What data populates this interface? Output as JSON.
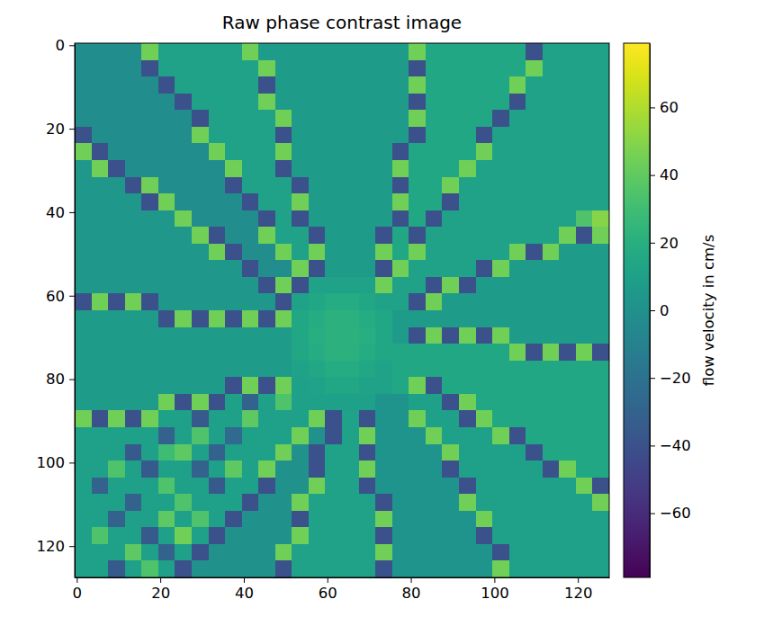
{
  "chart_data": {
    "type": "heatmap",
    "title": "Raw phase contrast image",
    "color": "viridis",
    "xlim": [
      -0.5,
      127.5
    ],
    "ylim": [
      127.5,
      -0.5
    ],
    "xticks": [
      0,
      20,
      40,
      60,
      80,
      100,
      120
    ],
    "yticks": [
      0,
      20,
      40,
      60,
      80,
      100,
      120
    ],
    "x": [
      1.5,
      5.5,
      9.5,
      13.5,
      17.5,
      21.5,
      25.5,
      29.5,
      33.5,
      37.5,
      41.5,
      45.5,
      49.5,
      53.5,
      57.5,
      61.5,
      65.5,
      69.5,
      73.5,
      77.5,
      81.5,
      85.5,
      89.5,
      93.5,
      97.5,
      101.5,
      105.5,
      109.5,
      113.5,
      117.5,
      121.5,
      125.5
    ],
    "y": [
      1.5,
      5.5,
      9.5,
      13.5,
      17.5,
      21.5,
      25.5,
      29.5,
      33.5,
      37.5,
      41.5,
      45.5,
      49.5,
      53.5,
      57.5,
      61.5,
      65.5,
      69.5,
      73.5,
      77.5,
      81.5,
      85.5,
      89.5,
      93.5,
      97.5,
      101.5,
      105.5,
      109.5,
      113.5,
      117.5,
      121.5,
      125.5
    ],
    "cells": [
      [
        -2,
        -2,
        -2,
        -2,
        45,
        12,
        12,
        12,
        12,
        12,
        45,
        8,
        8,
        8,
        8,
        8,
        8,
        8,
        8,
        8,
        45,
        15,
        15,
        15,
        15,
        15,
        15,
        -40,
        12,
        12,
        12,
        12
      ],
      [
        -2,
        -2,
        -2,
        -2,
        -40,
        12,
        12,
        12,
        12,
        12,
        12,
        45,
        8,
        8,
        8,
        8,
        8,
        8,
        8,
        8,
        -40,
        15,
        15,
        15,
        15,
        15,
        15,
        45,
        12,
        12,
        12,
        12
      ],
      [
        -2,
        -2,
        -2,
        -2,
        -2,
        -40,
        12,
        12,
        12,
        12,
        12,
        -40,
        8,
        8,
        8,
        8,
        8,
        8,
        8,
        8,
        45,
        15,
        15,
        15,
        15,
        15,
        45,
        12,
        12,
        12,
        12,
        12
      ],
      [
        -2,
        -2,
        -2,
        -2,
        -2,
        -2,
        -40,
        12,
        12,
        12,
        12,
        45,
        8,
        8,
        8,
        8,
        8,
        8,
        8,
        8,
        -40,
        15,
        15,
        15,
        15,
        15,
        -40,
        12,
        12,
        12,
        12,
        12
      ],
      [
        -2,
        -2,
        -2,
        -2,
        -2,
        -2,
        -2,
        -40,
        12,
        12,
        12,
        12,
        45,
        8,
        8,
        8,
        8,
        8,
        8,
        8,
        45,
        15,
        15,
        15,
        15,
        -40,
        12,
        12,
        12,
        12,
        12,
        12
      ],
      [
        -40,
        -2,
        -2,
        -2,
        -2,
        -2,
        -2,
        45,
        12,
        12,
        12,
        12,
        -40,
        8,
        8,
        8,
        8,
        8,
        8,
        8,
        -40,
        15,
        15,
        15,
        -40,
        12,
        12,
        12,
        12,
        12,
        12,
        12
      ],
      [
        45,
        -40,
        -2,
        -2,
        -2,
        -2,
        -2,
        -2,
        45,
        12,
        12,
        12,
        45,
        8,
        8,
        8,
        8,
        8,
        8,
        -40,
        15,
        15,
        15,
        15,
        45,
        12,
        12,
        12,
        12,
        12,
        12,
        12
      ],
      [
        5,
        45,
        -40,
        -2,
        -2,
        -2,
        -2,
        -2,
        -2,
        45,
        12,
        12,
        -40,
        8,
        8,
        8,
        8,
        8,
        8,
        45,
        15,
        15,
        15,
        45,
        12,
        12,
        12,
        12,
        12,
        12,
        12,
        12
      ],
      [
        5,
        5,
        5,
        -40,
        45,
        -2,
        -2,
        -2,
        -2,
        -40,
        12,
        12,
        12,
        -40,
        8,
        8,
        8,
        8,
        8,
        -40,
        15,
        15,
        45,
        12,
        12,
        12,
        12,
        12,
        12,
        12,
        12,
        12
      ],
      [
        5,
        5,
        5,
        5,
        -40,
        45,
        -2,
        -2,
        -2,
        -2,
        -40,
        12,
        12,
        45,
        8,
        8,
        8,
        8,
        8,
        45,
        15,
        15,
        -40,
        12,
        12,
        12,
        12,
        12,
        12,
        12,
        12,
        12
      ],
      [
        5,
        5,
        5,
        5,
        5,
        5,
        45,
        -2,
        -2,
        -2,
        -2,
        -40,
        12,
        -40,
        8,
        8,
        8,
        8,
        8,
        -40,
        15,
        -40,
        12,
        12,
        12,
        12,
        12,
        12,
        12,
        12,
        35,
        50
      ],
      [
        5,
        5,
        5,
        5,
        5,
        5,
        5,
        45,
        -40,
        -2,
        -2,
        45,
        12,
        12,
        -40,
        8,
        8,
        8,
        -40,
        15,
        -40,
        12,
        12,
        12,
        12,
        12,
        12,
        12,
        12,
        45,
        -40,
        45
      ],
      [
        5,
        5,
        5,
        5,
        5,
        5,
        5,
        5,
        45,
        -40,
        -2,
        -2,
        45,
        12,
        45,
        8,
        8,
        8,
        45,
        15,
        45,
        12,
        12,
        12,
        12,
        12,
        45,
        -40,
        45,
        8,
        8,
        8
      ],
      [
        5,
        5,
        5,
        5,
        5,
        5,
        5,
        5,
        5,
        5,
        -40,
        -2,
        -2,
        45,
        -40,
        8,
        8,
        8,
        -40,
        45,
        12,
        12,
        12,
        12,
        -40,
        45,
        8,
        8,
        8,
        8,
        8,
        8
      ],
      [
        5,
        5,
        5,
        5,
        5,
        5,
        5,
        5,
        5,
        5,
        5,
        -40,
        45,
        -40,
        12,
        12,
        12,
        12,
        45,
        12,
        12,
        -40,
        45,
        -40,
        8,
        8,
        8,
        8,
        8,
        8,
        8,
        8
      ],
      [
        -40,
        45,
        -40,
        45,
        -40,
        5,
        5,
        5,
        5,
        5,
        5,
        5,
        -40,
        12,
        15,
        18,
        18,
        15,
        12,
        12,
        -40,
        45,
        8,
        8,
        8,
        8,
        8,
        8,
        8,
        8,
        8,
        8
      ],
      [
        8,
        8,
        8,
        8,
        8,
        -40,
        45,
        -40,
        45,
        -40,
        45,
        -40,
        45,
        15,
        18,
        22,
        22,
        18,
        15,
        8,
        8,
        8,
        8,
        8,
        8,
        8,
        8,
        8,
        8,
        8,
        8,
        8
      ],
      [
        8,
        8,
        8,
        8,
        8,
        8,
        8,
        8,
        8,
        8,
        8,
        8,
        8,
        15,
        20,
        22,
        22,
        20,
        15,
        8,
        -40,
        45,
        -40,
        45,
        -40,
        45,
        8,
        8,
        8,
        8,
        8,
        8
      ],
      [
        8,
        8,
        8,
        8,
        8,
        8,
        8,
        8,
        8,
        8,
        8,
        8,
        8,
        15,
        18,
        22,
        22,
        18,
        15,
        15,
        15,
        15,
        15,
        15,
        15,
        15,
        45,
        -40,
        45,
        -40,
        45,
        -40
      ],
      [
        8,
        8,
        8,
        8,
        8,
        8,
        8,
        8,
        8,
        8,
        8,
        8,
        8,
        12,
        15,
        18,
        18,
        15,
        12,
        15,
        15,
        15,
        15,
        15,
        15,
        15,
        15,
        15,
        15,
        15,
        15,
        15
      ],
      [
        8,
        8,
        8,
        8,
        8,
        8,
        8,
        8,
        8,
        -40,
        45,
        -40,
        45,
        10,
        12,
        15,
        15,
        12,
        12,
        15,
        45,
        -40,
        15,
        15,
        15,
        15,
        15,
        15,
        15,
        15,
        15,
        15
      ],
      [
        8,
        8,
        8,
        8,
        8,
        45,
        -40,
        45,
        -40,
        10,
        -30,
        10,
        35,
        10,
        10,
        10,
        10,
        10,
        3,
        3,
        10,
        10,
        -40,
        45,
        15,
        15,
        15,
        15,
        15,
        15,
        15,
        15
      ],
      [
        45,
        -40,
        45,
        -40,
        45,
        10,
        10,
        -35,
        10,
        10,
        40,
        10,
        10,
        10,
        45,
        -40,
        12,
        -40,
        3,
        3,
        45,
        10,
        10,
        -40,
        45,
        15,
        15,
        15,
        15,
        15,
        15,
        15
      ],
      [
        10,
        10,
        10,
        10,
        10,
        -30,
        10,
        35,
        10,
        -25,
        10,
        10,
        10,
        45,
        0,
        -40,
        12,
        45,
        3,
        3,
        3,
        45,
        10,
        10,
        10,
        45,
        -40,
        15,
        15,
        15,
        15,
        15
      ],
      [
        10,
        10,
        10,
        -35,
        10,
        30,
        40,
        10,
        -30,
        10,
        10,
        10,
        45,
        0,
        -40,
        12,
        12,
        -40,
        3,
        3,
        3,
        3,
        45,
        10,
        10,
        10,
        10,
        -40,
        15,
        15,
        15,
        15
      ],
      [
        10,
        10,
        35,
        10,
        -35,
        10,
        10,
        -30,
        10,
        40,
        10,
        45,
        0,
        0,
        -40,
        12,
        12,
        45,
        3,
        3,
        3,
        3,
        -40,
        10,
        10,
        10,
        10,
        10,
        -40,
        45,
        15,
        15
      ],
      [
        10,
        -30,
        10,
        10,
        10,
        35,
        10,
        10,
        -35,
        10,
        10,
        -40,
        0,
        0,
        45,
        12,
        12,
        -40,
        3,
        3,
        3,
        3,
        3,
        -40,
        10,
        10,
        10,
        10,
        10,
        10,
        45,
        -40
      ],
      [
        10,
        10,
        10,
        -30,
        10,
        10,
        35,
        10,
        10,
        10,
        -40,
        0,
        0,
        45,
        12,
        12,
        12,
        12,
        -40,
        3,
        3,
        3,
        3,
        45,
        10,
        10,
        10,
        10,
        10,
        10,
        10,
        45
      ],
      [
        10,
        10,
        -30,
        10,
        10,
        40,
        10,
        35,
        10,
        -40,
        0,
        0,
        0,
        -40,
        12,
        12,
        12,
        12,
        45,
        3,
        3,
        3,
        3,
        3,
        45,
        10,
        10,
        10,
        10,
        10,
        10,
        10
      ],
      [
        10,
        35,
        10,
        10,
        -35,
        10,
        45,
        10,
        -40,
        0,
        0,
        0,
        0,
        45,
        12,
        12,
        12,
        12,
        -40,
        3,
        3,
        3,
        3,
        3,
        -40,
        10,
        10,
        10,
        10,
        10,
        10,
        10
      ],
      [
        10,
        10,
        10,
        40,
        10,
        -30,
        10,
        -40,
        0,
        0,
        0,
        0,
        45,
        12,
        12,
        12,
        12,
        12,
        45,
        3,
        3,
        3,
        3,
        3,
        3,
        -40,
        10,
        10,
        10,
        10,
        10,
        10
      ],
      [
        10,
        10,
        -35,
        10,
        35,
        10,
        -40,
        0,
        0,
        0,
        0,
        0,
        -40,
        12,
        12,
        12,
        12,
        12,
        -40,
        3,
        3,
        3,
        3,
        3,
        3,
        45,
        10,
        10,
        10,
        10,
        10,
        10
      ]
    ],
    "colorbar": {
      "label": "flow velocity in cm/s",
      "range": [
        -79,
        79
      ],
      "ticks": [
        {
          "value": -60,
          "label": "−60"
        },
        {
          "value": -40,
          "label": "−40"
        },
        {
          "value": -20,
          "label": "−20"
        },
        0,
        20,
        40,
        60
      ]
    }
  }
}
